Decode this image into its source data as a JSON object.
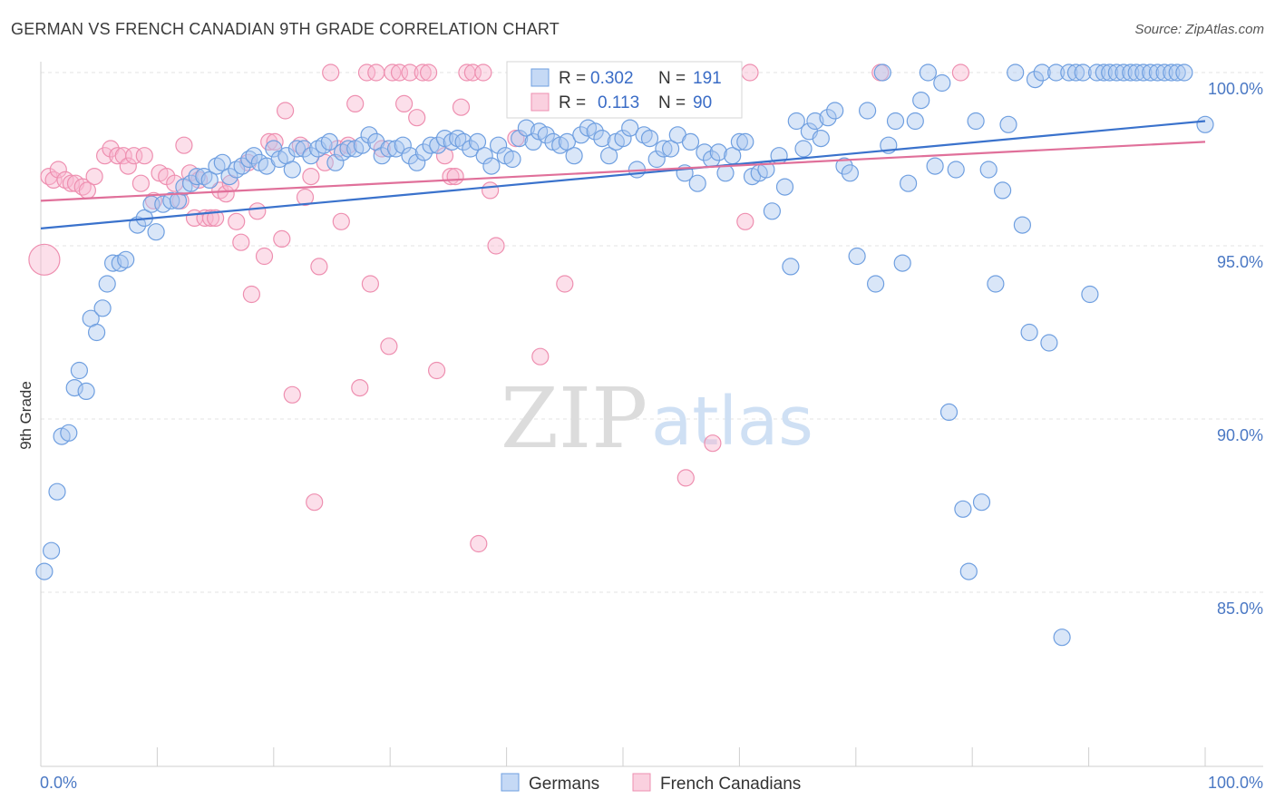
{
  "header": {
    "title": "GERMAN VS FRENCH CANADIAN 9TH GRADE CORRELATION CHART",
    "source": "Source: ZipAtlas.com"
  },
  "watermark": {
    "zip": "ZIP",
    "atlas": "atlas"
  },
  "legend": {
    "r_label": "R =",
    "n_label": "N =",
    "entries": [
      {
        "r": "0.302",
        "n": "191",
        "color": "#6f9fe0"
      },
      {
        "r": "0.113",
        "n": "90",
        "color": "#ee8fb0"
      }
    ]
  },
  "chart_data": {
    "type": "scatter",
    "title": "GERMAN VS FRENCH CANADIAN 9TH GRADE CORRELATION CHART",
    "xlabel": "",
    "ylabel": "9th Grade",
    "xlim": [
      0,
      100
    ],
    "ylim": [
      80.5,
      100.6
    ],
    "x_tick_labels": [
      "0.0%",
      "100.0%"
    ],
    "y_ticks": [
      100,
      95,
      90,
      85
    ],
    "y_tick_labels": [
      "100.0%",
      "95.0%",
      "90.0%",
      "85.0%"
    ],
    "grid": true,
    "legend_position": "bottom",
    "series": [
      {
        "name": "Germans",
        "color": "#6f9fe0",
        "trend": {
          "x": [
            0,
            100
          ],
          "y": [
            95.5,
            98.6
          ]
        },
        "points": [
          [
            0.3,
            85.6
          ],
          [
            0.9,
            86.2
          ],
          [
            1.4,
            87.9
          ],
          [
            1.8,
            89.5
          ],
          [
            2.4,
            89.6
          ],
          [
            2.9,
            90.9
          ],
          [
            3.3,
            91.4
          ],
          [
            3.9,
            90.8
          ],
          [
            4.3,
            92.9
          ],
          [
            4.8,
            92.5
          ],
          [
            5.3,
            93.2
          ],
          [
            5.7,
            93.9
          ],
          [
            6.2,
            94.5
          ],
          [
            6.8,
            94.5
          ],
          [
            7.3,
            94.6
          ],
          [
            8.3,
            95.6
          ],
          [
            8.9,
            95.8
          ],
          [
            9.5,
            96.2
          ],
          [
            9.9,
            95.4
          ],
          [
            10.5,
            96.2
          ],
          [
            11.2,
            96.3
          ],
          [
            11.8,
            96.3
          ],
          [
            12.3,
            96.7
          ],
          [
            12.9,
            96.8
          ],
          [
            13.4,
            97.0
          ],
          [
            14.0,
            97.0
          ],
          [
            14.5,
            96.9
          ],
          [
            15.1,
            97.3
          ],
          [
            15.6,
            97.4
          ],
          [
            16.2,
            97.0
          ],
          [
            16.8,
            97.2
          ],
          [
            17.3,
            97.3
          ],
          [
            17.9,
            97.5
          ],
          [
            18.3,
            97.6
          ],
          [
            18.8,
            97.4
          ],
          [
            19.4,
            97.3
          ],
          [
            20.0,
            97.8
          ],
          [
            20.5,
            97.5
          ],
          [
            21.1,
            97.6
          ],
          [
            21.6,
            97.2
          ],
          [
            22.0,
            97.8
          ],
          [
            22.6,
            97.8
          ],
          [
            23.2,
            97.6
          ],
          [
            23.8,
            97.8
          ],
          [
            24.3,
            97.9
          ],
          [
            24.8,
            98.0
          ],
          [
            25.3,
            97.4
          ],
          [
            25.9,
            97.7
          ],
          [
            26.4,
            97.8
          ],
          [
            27.0,
            97.8
          ],
          [
            27.6,
            97.9
          ],
          [
            28.2,
            98.2
          ],
          [
            28.8,
            98.0
          ],
          [
            29.3,
            97.6
          ],
          [
            29.9,
            97.8
          ],
          [
            30.5,
            97.8
          ],
          [
            31.1,
            97.9
          ],
          [
            31.7,
            97.6
          ],
          [
            32.3,
            97.4
          ],
          [
            32.9,
            97.7
          ],
          [
            33.5,
            97.9
          ],
          [
            34.1,
            97.9
          ],
          [
            34.7,
            98.1
          ],
          [
            35.3,
            98.0
          ],
          [
            35.8,
            98.1
          ],
          [
            36.3,
            98.0
          ],
          [
            36.9,
            97.8
          ],
          [
            37.5,
            98.0
          ],
          [
            38.1,
            97.6
          ],
          [
            38.7,
            97.3
          ],
          [
            39.3,
            97.9
          ],
          [
            39.9,
            97.6
          ],
          [
            40.5,
            97.5
          ],
          [
            41.1,
            98.1
          ],
          [
            41.7,
            98.4
          ],
          [
            42.3,
            98.0
          ],
          [
            42.8,
            98.3
          ],
          [
            43.4,
            98.2
          ],
          [
            44.0,
            98.0
          ],
          [
            44.6,
            97.9
          ],
          [
            45.2,
            98.0
          ],
          [
            45.8,
            97.6
          ],
          [
            46.4,
            98.2
          ],
          [
            47.0,
            98.4
          ],
          [
            47.6,
            98.3
          ],
          [
            48.2,
            98.1
          ],
          [
            48.8,
            97.6
          ],
          [
            49.4,
            98.0
          ],
          [
            50.0,
            98.1
          ],
          [
            50.6,
            98.4
          ],
          [
            51.2,
            97.2
          ],
          [
            51.8,
            98.2
          ],
          [
            52.3,
            98.1
          ],
          [
            52.9,
            97.5
          ],
          [
            53.5,
            97.8
          ],
          [
            54.1,
            97.8
          ],
          [
            54.7,
            98.2
          ],
          [
            55.3,
            97.1
          ],
          [
            55.8,
            98.0
          ],
          [
            56.4,
            96.8
          ],
          [
            57.0,
            97.7
          ],
          [
            57.6,
            97.5
          ],
          [
            58.2,
            97.7
          ],
          [
            58.8,
            97.1
          ],
          [
            59.4,
            97.6
          ],
          [
            60.0,
            98.0
          ],
          [
            60.5,
            98.0
          ],
          [
            61.1,
            97.0
          ],
          [
            61.7,
            97.1
          ],
          [
            62.3,
            97.2
          ],
          [
            62.8,
            96.0
          ],
          [
            63.4,
            97.6
          ],
          [
            63.9,
            96.7
          ],
          [
            64.4,
            94.4
          ],
          [
            64.9,
            98.6
          ],
          [
            65.5,
            97.8
          ],
          [
            66.0,
            98.3
          ],
          [
            66.5,
            98.6
          ],
          [
            67.0,
            98.1
          ],
          [
            67.6,
            98.7
          ],
          [
            68.2,
            98.9
          ],
          [
            69.0,
            97.3
          ],
          [
            69.5,
            97.1
          ],
          [
            70.1,
            94.7
          ],
          [
            71.0,
            98.9
          ],
          [
            71.7,
            93.9
          ],
          [
            72.3,
            100.0
          ],
          [
            72.8,
            97.9
          ],
          [
            73.4,
            98.6
          ],
          [
            74.0,
            94.5
          ],
          [
            74.5,
            96.8
          ],
          [
            75.1,
            98.6
          ],
          [
            75.6,
            99.2
          ],
          [
            76.2,
            100.0
          ],
          [
            76.8,
            97.3
          ],
          [
            77.4,
            99.7
          ],
          [
            78.0,
            90.2
          ],
          [
            78.6,
            97.2
          ],
          [
            79.2,
            87.4
          ],
          [
            79.7,
            85.6
          ],
          [
            80.3,
            98.6
          ],
          [
            80.8,
            87.6
          ],
          [
            81.4,
            97.2
          ],
          [
            82.0,
            93.9
          ],
          [
            82.6,
            96.6
          ],
          [
            83.1,
            98.5
          ],
          [
            83.7,
            100.0
          ],
          [
            84.3,
            95.6
          ],
          [
            84.9,
            92.5
          ],
          [
            85.4,
            99.8
          ],
          [
            86.0,
            100.0
          ],
          [
            86.6,
            92.2
          ],
          [
            87.2,
            100.0
          ],
          [
            87.7,
            83.7
          ],
          [
            88.3,
            100.0
          ],
          [
            88.9,
            100.0
          ],
          [
            89.5,
            100.0
          ],
          [
            90.1,
            93.6
          ],
          [
            90.7,
            100.0
          ],
          [
            91.3,
            100.0
          ],
          [
            91.8,
            100.0
          ],
          [
            92.4,
            100.0
          ],
          [
            93.0,
            100.0
          ],
          [
            93.6,
            100.0
          ],
          [
            94.1,
            100.0
          ],
          [
            94.7,
            100.0
          ],
          [
            95.3,
            100.0
          ],
          [
            95.9,
            100.0
          ],
          [
            96.5,
            100.0
          ],
          [
            97.1,
            100.0
          ],
          [
            97.6,
            100.0
          ],
          [
            98.2,
            100.0
          ],
          [
            100.0,
            98.5
          ]
        ]
      },
      {
        "name": "French Canadians",
        "color": "#ee8fb0",
        "trend": {
          "x": [
            0,
            100
          ],
          "y": [
            96.3,
            98.0
          ]
        },
        "points": [
          [
            0.3,
            94.6
          ],
          [
            0.7,
            97.0
          ],
          [
            1.1,
            96.9
          ],
          [
            1.5,
            97.2
          ],
          [
            2.1,
            96.9
          ],
          [
            2.6,
            96.8
          ],
          [
            3.0,
            96.8
          ],
          [
            3.6,
            96.7
          ],
          [
            4.0,
            96.6
          ],
          [
            4.6,
            97.0
          ],
          [
            5.5,
            97.6
          ],
          [
            6.0,
            97.8
          ],
          [
            6.6,
            97.6
          ],
          [
            7.1,
            97.6
          ],
          [
            7.5,
            97.3
          ],
          [
            8.0,
            97.6
          ],
          [
            8.6,
            96.8
          ],
          [
            8.9,
            97.6
          ],
          [
            9.7,
            96.3
          ],
          [
            10.2,
            97.1
          ],
          [
            10.8,
            97.0
          ],
          [
            11.5,
            96.8
          ],
          [
            12.0,
            96.3
          ],
          [
            12.3,
            97.9
          ],
          [
            12.8,
            97.1
          ],
          [
            13.2,
            95.8
          ],
          [
            13.6,
            96.9
          ],
          [
            14.1,
            95.8
          ],
          [
            14.6,
            95.8
          ],
          [
            15.0,
            95.8
          ],
          [
            15.4,
            96.6
          ],
          [
            15.9,
            96.5
          ],
          [
            16.3,
            96.8
          ],
          [
            16.8,
            95.7
          ],
          [
            17.2,
            95.1
          ],
          [
            17.8,
            97.4
          ],
          [
            18.1,
            93.6
          ],
          [
            18.6,
            96.0
          ],
          [
            19.2,
            94.7
          ],
          [
            19.6,
            98.0
          ],
          [
            20.1,
            98.0
          ],
          [
            20.7,
            95.2
          ],
          [
            21.0,
            98.9
          ],
          [
            21.6,
            90.7
          ],
          [
            22.3,
            97.9
          ],
          [
            22.7,
            96.4
          ],
          [
            23.2,
            97.0
          ],
          [
            23.5,
            87.6
          ],
          [
            23.9,
            94.4
          ],
          [
            24.4,
            97.4
          ],
          [
            24.9,
            100.0
          ],
          [
            25.5,
            97.8
          ],
          [
            25.8,
            95.7
          ],
          [
            26.4,
            97.9
          ],
          [
            27.0,
            99.1
          ],
          [
            27.4,
            90.9
          ],
          [
            28.0,
            100.0
          ],
          [
            28.3,
            93.9
          ],
          [
            28.8,
            100.0
          ],
          [
            29.3,
            97.8
          ],
          [
            29.9,
            92.1
          ],
          [
            30.2,
            100.0
          ],
          [
            30.8,
            100.0
          ],
          [
            31.2,
            99.1
          ],
          [
            31.7,
            100.0
          ],
          [
            32.3,
            98.7
          ],
          [
            32.8,
            100.0
          ],
          [
            33.3,
            100.0
          ],
          [
            34.0,
            91.4
          ],
          [
            34.7,
            97.6
          ],
          [
            35.2,
            97.0
          ],
          [
            35.6,
            97.0
          ],
          [
            36.1,
            99.0
          ],
          [
            36.6,
            100.0
          ],
          [
            37.1,
            100.0
          ],
          [
            37.6,
            86.4
          ],
          [
            38.0,
            100.0
          ],
          [
            38.6,
            96.6
          ],
          [
            39.1,
            95.0
          ],
          [
            40.8,
            98.1
          ],
          [
            42.9,
            91.8
          ],
          [
            45.0,
            93.9
          ],
          [
            47.1,
            100.0
          ],
          [
            49.0,
            100.0
          ],
          [
            55.4,
            88.3
          ],
          [
            57.7,
            89.3
          ],
          [
            60.5,
            95.7
          ],
          [
            60.9,
            100.0
          ],
          [
            72.1,
            100.0
          ],
          [
            79.0,
            100.0
          ]
        ]
      }
    ]
  }
}
